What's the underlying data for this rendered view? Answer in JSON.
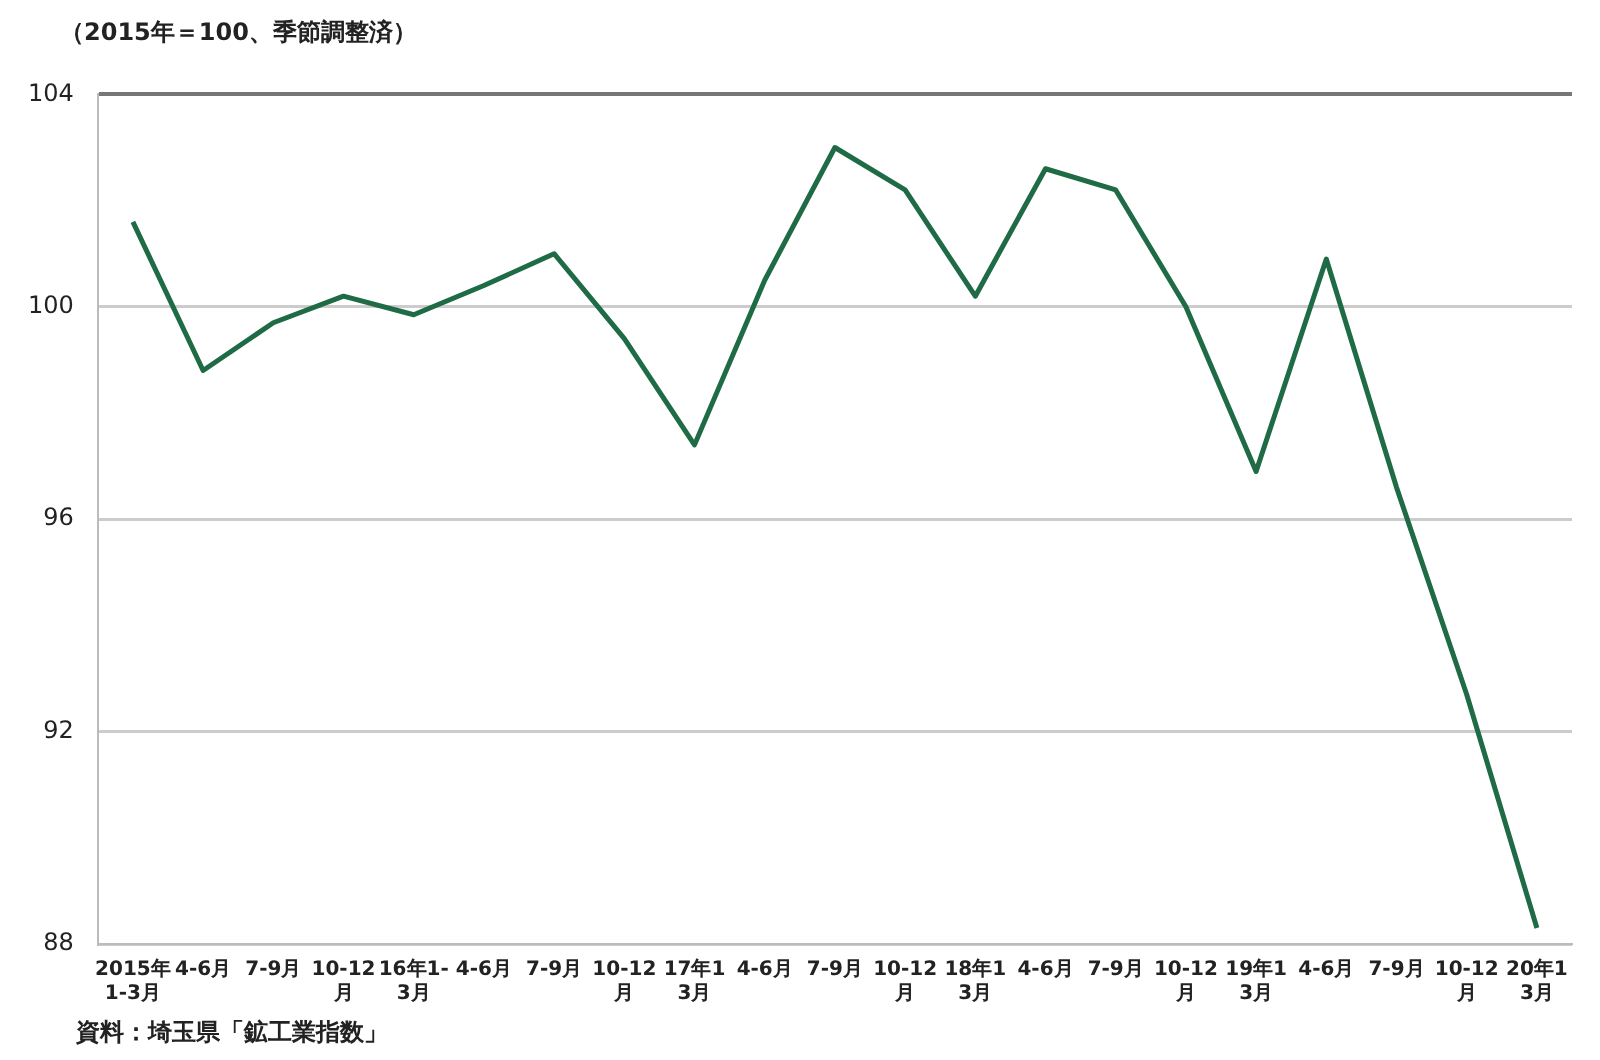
{
  "chart_data": {
    "type": "line",
    "title": "（2015年＝100、季節調整済）",
    "categories": [
      "2015年\n1-3月",
      "4-6月",
      "7-9月",
      "10-12\n月",
      "16年1-\n3月",
      "4-6月",
      "7-9月",
      "10-12\n月",
      "17年1\n3月",
      "4-6月",
      "7-9月",
      "10-12\n月",
      "18年1\n3月",
      "4-6月",
      "7-9月",
      "10-12\n月",
      "19年1\n3月",
      "4-6月",
      "7-9月",
      "10-12\n月",
      "20年1\n3月"
    ],
    "values": [
      101.6,
      98.8,
      99.7,
      100.2,
      99.85,
      100.4,
      101.0,
      99.4,
      97.4,
      100.5,
      103.0,
      102.2,
      100.2,
      102.6,
      102.2,
      100.0,
      96.9,
      100.9,
      96.6,
      92.7,
      88.3
    ],
    "color": "#1e6b45",
    "ylim": [
      88,
      104
    ],
    "yticks": [
      88,
      92,
      96,
      100,
      104
    ],
    "grid": "y",
    "marker": "none",
    "line_style": "solid",
    "legend": false,
    "annotations": [
      "資料：埼玉県「鉱工業指数」"
    ]
  }
}
